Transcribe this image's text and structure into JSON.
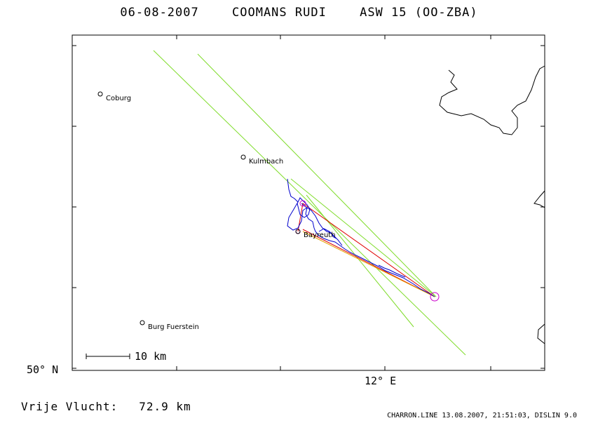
{
  "header": {
    "date": "06-08-2007",
    "pilot": "COOMANS RUDI",
    "glider": "ASW 15 (OO-ZBA)"
  },
  "map": {
    "lat_label": "50° N",
    "lon_label": "12° E",
    "scale_label": "10 km",
    "cities": [
      {
        "name": "Coburg"
      },
      {
        "name": "Kulmbach"
      },
      {
        "name": "Bayreuth"
      },
      {
        "name": "Burg Fuerstein"
      }
    ],
    "colors": {
      "track": "#0000cc",
      "sector": "#7fdc2a",
      "route": "#e00000",
      "turnpoint": "#cc00cc",
      "border": "#000000"
    }
  },
  "summary": {
    "label": "Vrije Vlucht:",
    "distance": "72.9 km"
  },
  "footer": {
    "text": "CHARRON.LINE 13.08.2007, 21:51:03, DISLIN 9.0"
  }
}
